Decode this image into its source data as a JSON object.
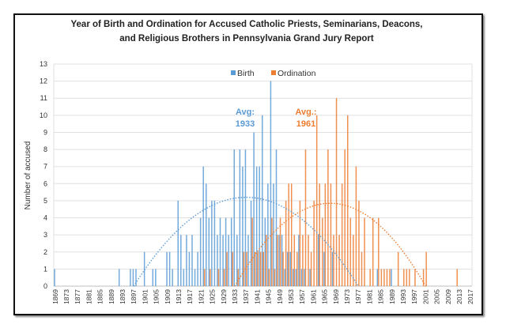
{
  "chart_data": {
    "type": "bar",
    "title": [
      "Year of Birth and Ordination for Accused Catholic Priests, Seminarians, Deacons,",
      "and Religious Brothers in Pennsylvania Grand Jury Report"
    ],
    "xlabel": "",
    "ylabel": "Number of accused",
    "xlim": [
      1869,
      2017
    ],
    "ylim": [
      0,
      13
    ],
    "yticks": [
      "0",
      "1",
      "2",
      "3",
      "4",
      "5",
      "6",
      "7",
      "8",
      "9",
      "10",
      "11",
      "12",
      "13"
    ],
    "xticks": [
      "1869",
      "1873",
      "1877",
      "1881",
      "1885",
      "1889",
      "1893",
      "1897",
      "1901",
      "1905",
      "1909",
      "1913",
      "1917",
      "1921",
      "1925",
      "1929",
      "1933",
      "1937",
      "1941",
      "1945",
      "1949",
      "1953",
      "1957",
      "1961",
      "1965",
      "1969",
      "1973",
      "1977",
      "1981",
      "1985",
      "1989",
      "1993",
      "1997",
      "2001",
      "2005",
      "2009",
      "2013",
      "2017"
    ],
    "grid": "horizontal",
    "legend_position": "top",
    "series": [
      {
        "name": "Birth",
        "color": "#5b9bd5",
        "trendline": "dotted polynomial",
        "annotation": [
          "Avg:",
          "1933"
        ],
        "values": {
          "1869": 1,
          "1892": 1,
          "1896": 1,
          "1897": 1,
          "1898": 1,
          "1901": 2,
          "1904": 1,
          "1905": 1,
          "1909": 2,
          "1910": 2,
          "1911": 1,
          "1913": 5,
          "1914": 3,
          "1915": 1,
          "1916": 3,
          "1917": 2,
          "1918": 3,
          "1919": 1,
          "1920": 2,
          "1921": 4,
          "1922": 7,
          "1923": 6,
          "1924": 4,
          "1925": 5,
          "1926": 5,
          "1927": 3,
          "1928": 4,
          "1929": 3,
          "1930": 4,
          "1931": 3,
          "1932": 4,
          "1933": 8,
          "1934": 3,
          "1935": 8,
          "1936": 7,
          "1937": 8,
          "1938": 3,
          "1939": 5,
          "1940": 9,
          "1941": 7,
          "1942": 7,
          "1943": 10,
          "1944": 4,
          "1945": 6,
          "1946": 12,
          "1947": 6,
          "1948": 8,
          "1949": 3,
          "1950": 3,
          "1951": 1,
          "1952": 2,
          "1953": 2,
          "1954": 1,
          "1955": 1,
          "1956": 3,
          "1957": 1,
          "1958": 1,
          "1960": 1,
          "1963": 3,
          "1965": 2,
          "1968": 2,
          "1984": 1,
          "1989": 1
        }
      },
      {
        "name": "Ordination",
        "color": "#ed7d31",
        "trendline": "dotted polynomial",
        "annotation": [
          "Avg.:",
          "1961"
        ],
        "values": {
          "1922": 1,
          "1924": 1,
          "1927": 1,
          "1929": 1,
          "1930": 2,
          "1932": 2,
          "1934": 1,
          "1936": 2,
          "1937": 2,
          "1939": 4,
          "1940": 2,
          "1941": 2,
          "1942": 2,
          "1943": 2,
          "1944": 3,
          "1945": 1,
          "1946": 4,
          "1947": 1,
          "1948": 3,
          "1949": 4,
          "1950": 2,
          "1951": 5,
          "1952": 6,
          "1953": 6,
          "1954": 3,
          "1955": 2,
          "1956": 5,
          "1957": 3,
          "1958": 8,
          "1959": 3,
          "1960": 2,
          "1961": 5,
          "1962": 10,
          "1963": 6,
          "1964": 4,
          "1965": 6,
          "1966": 8,
          "1967": 6,
          "1968": 3,
          "1969": 11,
          "1970": 3,
          "1971": 6,
          "1972": 8,
          "1973": 10,
          "1974": 4,
          "1975": 3,
          "1976": 7,
          "1977": 5,
          "1978": 2,
          "1979": 4,
          "1981": 1,
          "1982": 4,
          "1984": 4,
          "1985": 1,
          "1986": 1,
          "1987": 1,
          "1988": 1,
          "1991": 2,
          "1993": 1,
          "1994": 1,
          "1995": 1,
          "1997": 1,
          "2000": 1,
          "2001": 2,
          "2012": 1
        }
      }
    ]
  }
}
